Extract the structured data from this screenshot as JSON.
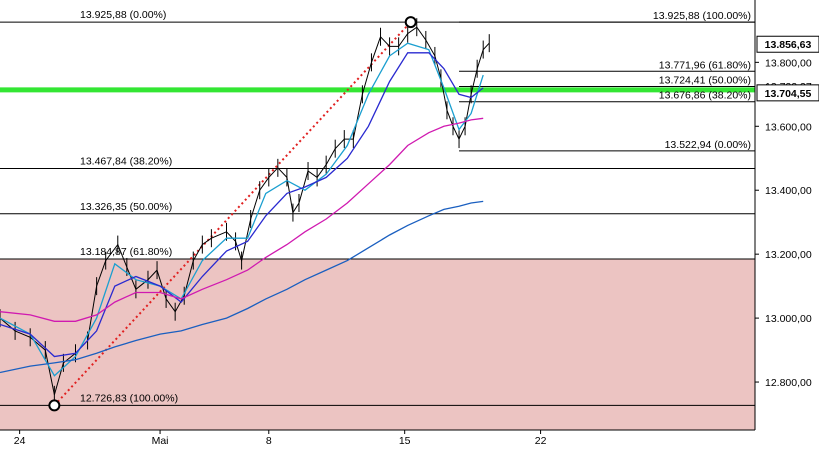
{
  "chart_data": {
    "type": "line",
    "instrument_style": "candlestick",
    "x_tick_labels": [
      "24",
      "Mai",
      "8",
      "15",
      "22"
    ],
    "y_tick_labels": [
      "12.800,00",
      "13.000,00",
      "13.200,00",
      "13.400,00",
      "13.600,00",
      "13.800,00"
    ],
    "y_ticks": [
      12800,
      13000,
      13200,
      13400,
      13600,
      13800
    ],
    "ylim": [
      12650,
      13995
    ],
    "x_range": [
      0,
      50
    ],
    "grid": false,
    "colors": {
      "fib_line": "#000000",
      "zone_fill": "#ecc4c2",
      "green_line": "#33e633",
      "trend_dotted": "#e02020",
      "ma_fast": "#1a9fd0",
      "ma_mid": "#2a2ad0",
      "ma_slow": "#d01ab0",
      "ma_long": "#1a5fc0",
      "last_price_box": "#000000",
      "candle": "#000000"
    },
    "fibonacci_major": [
      {
        "price": 13925.88,
        "label": "13.925,88 (0.00%)"
      },
      {
        "price": 13467.84,
        "label": "13.467,84 (38.20%)"
      },
      {
        "price": 13326.35,
        "label": "13.326,35 (50.00%)"
      },
      {
        "price": 13184.87,
        "label": "13.184,87 (61.80%)"
      },
      {
        "price": 12726.83,
        "label": "12.726,83 (100.00%)"
      }
    ],
    "fibonacci_minor": [
      {
        "price": 13925.88,
        "label": "13.925,88 (100.00%)"
      },
      {
        "price": 13771.96,
        "label": "13.771,96 (61.80%)"
      },
      {
        "price": 13724.41,
        "label": "13.724,41 (50.00%)"
      },
      {
        "price": 13676.86,
        "label": "13.676,86 (38.20%)"
      },
      {
        "price": 13522.94,
        "label": "13.522,94 (0.00%)"
      }
    ],
    "current_price_label": "13.856,63",
    "current_price": 13856.63,
    "green_level_label": "13.704,55",
    "green_level": 13704.55,
    "hidden_label": "13.722,37",
    "support_zone": [
      12650,
      13184.87
    ],
    "trend_line": {
      "from": [
        3.6,
        12726.83
      ],
      "to": [
        27.2,
        13925.88
      ]
    },
    "swing_markers": [
      [
        3.6,
        12726.83
      ],
      [
        27.2,
        13925.88
      ]
    ],
    "series": [
      {
        "role": "price",
        "values": [
          [
            0,
            13000
          ],
          [
            1,
            12960
          ],
          [
            2,
            12940
          ],
          [
            3,
            12900
          ],
          [
            3.6,
            12760
          ],
          [
            4.2,
            12860
          ],
          [
            5,
            12890
          ],
          [
            5.8,
            12930
          ],
          [
            6.4,
            13100
          ],
          [
            7,
            13180
          ],
          [
            7.8,
            13230
          ],
          [
            8.4,
            13160
          ],
          [
            9,
            13090
          ],
          [
            9.8,
            13120
          ],
          [
            10.4,
            13150
          ],
          [
            11,
            13060
          ],
          [
            11.6,
            13020
          ],
          [
            12.2,
            13070
          ],
          [
            12.8,
            13180
          ],
          [
            13.4,
            13230
          ],
          [
            14,
            13250
          ],
          [
            15,
            13270
          ],
          [
            15.6,
            13240
          ],
          [
            16,
            13180
          ],
          [
            16.6,
            13310
          ],
          [
            17.2,
            13400
          ],
          [
            17.8,
            13440
          ],
          [
            18.4,
            13470
          ],
          [
            19,
            13440
          ],
          [
            19.4,
            13330
          ],
          [
            19.8,
            13360
          ],
          [
            20.4,
            13460
          ],
          [
            21,
            13440
          ],
          [
            21.6,
            13480
          ],
          [
            22.2,
            13530
          ],
          [
            22.8,
            13560
          ],
          [
            23.4,
            13560
          ],
          [
            24,
            13700
          ],
          [
            24.6,
            13800
          ],
          [
            25.2,
            13880
          ],
          [
            25.8,
            13850
          ],
          [
            26.4,
            13850
          ],
          [
            27,
            13890
          ],
          [
            27.6,
            13910
          ],
          [
            28.2,
            13870
          ],
          [
            28.8,
            13820
          ],
          [
            29.2,
            13750
          ],
          [
            29.6,
            13650
          ],
          [
            30,
            13600
          ],
          [
            30.4,
            13560
          ],
          [
            30.8,
            13600
          ],
          [
            31.2,
            13700
          ],
          [
            31.6,
            13780
          ],
          [
            32,
            13840
          ],
          [
            32.4,
            13860
          ]
        ]
      },
      {
        "role": "ma_fast",
        "values": [
          [
            0,
            13000
          ],
          [
            2,
            12950
          ],
          [
            3.6,
            12820
          ],
          [
            5,
            12880
          ],
          [
            6.4,
            13000
          ],
          [
            7.6,
            13170
          ],
          [
            9,
            13120
          ],
          [
            10.6,
            13100
          ],
          [
            12,
            13060
          ],
          [
            13.4,
            13180
          ],
          [
            15,
            13250
          ],
          [
            16.4,
            13250
          ],
          [
            17.6,
            13390
          ],
          [
            19,
            13430
          ],
          [
            20.2,
            13400
          ],
          [
            21.6,
            13450
          ],
          [
            23,
            13540
          ],
          [
            24.4,
            13700
          ],
          [
            25.8,
            13820
          ],
          [
            27,
            13860
          ],
          [
            28.4,
            13840
          ],
          [
            29.4,
            13720
          ],
          [
            30.4,
            13590
          ],
          [
            31.2,
            13640
          ],
          [
            32,
            13760
          ]
        ]
      },
      {
        "role": "ma_mid",
        "values": [
          [
            0,
            12980
          ],
          [
            2,
            12950
          ],
          [
            3.6,
            12880
          ],
          [
            5,
            12890
          ],
          [
            6.4,
            12960
          ],
          [
            7.6,
            13100
          ],
          [
            9,
            13130
          ],
          [
            10.6,
            13100
          ],
          [
            12,
            13050
          ],
          [
            13.4,
            13130
          ],
          [
            15,
            13210
          ],
          [
            16.4,
            13240
          ],
          [
            17.6,
            13320
          ],
          [
            19,
            13390
          ],
          [
            20.2,
            13410
          ],
          [
            21.6,
            13440
          ],
          [
            23,
            13500
          ],
          [
            24.4,
            13600
          ],
          [
            25.8,
            13740
          ],
          [
            27,
            13830
          ],
          [
            28.4,
            13830
          ],
          [
            29.4,
            13780
          ],
          [
            30.4,
            13700
          ],
          [
            31.2,
            13690
          ],
          [
            32,
            13720
          ]
        ]
      },
      {
        "role": "ma_slow",
        "values": [
          [
            0,
            13020
          ],
          [
            2,
            13010
          ],
          [
            3.6,
            12990
          ],
          [
            5,
            12990
          ],
          [
            6.4,
            13010
          ],
          [
            7.6,
            13050
          ],
          [
            9,
            13080
          ],
          [
            10.6,
            13080
          ],
          [
            12,
            13060
          ],
          [
            13.4,
            13090
          ],
          [
            15,
            13120
          ],
          [
            16.4,
            13150
          ],
          [
            17.6,
            13190
          ],
          [
            19,
            13230
          ],
          [
            20.2,
            13270
          ],
          [
            21.6,
            13310
          ],
          [
            23,
            13360
          ],
          [
            24.4,
            13420
          ],
          [
            25.8,
            13480
          ],
          [
            27,
            13540
          ],
          [
            28.4,
            13580
          ],
          [
            29.4,
            13600
          ],
          [
            30.4,
            13610
          ],
          [
            31.2,
            13620
          ],
          [
            32,
            13625
          ]
        ]
      },
      {
        "role": "ma_long",
        "values": [
          [
            0,
            12830
          ],
          [
            2,
            12850
          ],
          [
            3.6,
            12860
          ],
          [
            5,
            12870
          ],
          [
            6.4,
            12890
          ],
          [
            7.6,
            12910
          ],
          [
            9,
            12930
          ],
          [
            10.6,
            12950
          ],
          [
            12,
            12960
          ],
          [
            13.4,
            12980
          ],
          [
            15,
            13000
          ],
          [
            16.4,
            13030
          ],
          [
            17.6,
            13060
          ],
          [
            19,
            13090
          ],
          [
            20.2,
            13120
          ],
          [
            21.6,
            13150
          ],
          [
            23,
            13180
          ],
          [
            24.4,
            13220
          ],
          [
            25.8,
            13260
          ],
          [
            27,
            13290
          ],
          [
            28.4,
            13320
          ],
          [
            29.4,
            13340
          ],
          [
            30.4,
            13350
          ],
          [
            31.2,
            13360
          ],
          [
            32,
            13365
          ]
        ]
      }
    ]
  }
}
